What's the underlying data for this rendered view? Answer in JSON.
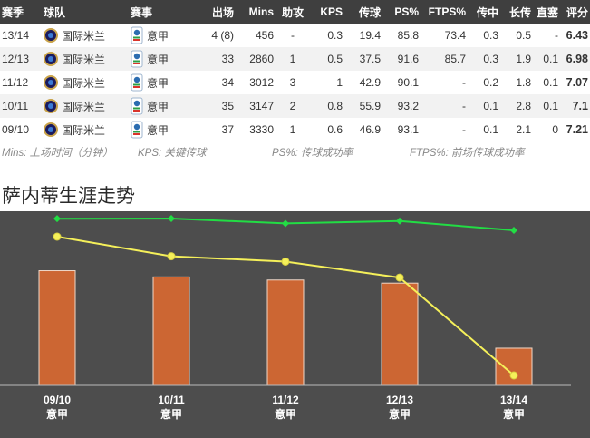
{
  "table": {
    "headers": {
      "season": "赛季",
      "team": "球队",
      "competition": "赛事",
      "apps": "出场",
      "mins": "Mins",
      "assists": "助攻",
      "kps": "KPS",
      "passes": "传球",
      "ps_pct": "PS%",
      "ftps_pct": "FTPS%",
      "through": "传中",
      "long": "长传",
      "shots": "直塞",
      "rating": "评分"
    },
    "rows": [
      {
        "season": "13/14",
        "team": "国际米兰",
        "competition": "意甲",
        "apps": "4 (8)",
        "mins": "456",
        "assists": "-",
        "kps": "0.3",
        "passes": "19.4",
        "ps_pct": "85.8",
        "ftps_pct": "73.4",
        "through": "0.3",
        "long": "0.5",
        "shots": "-",
        "rating": "6.43"
      },
      {
        "season": "12/13",
        "team": "国际米兰",
        "competition": "意甲",
        "apps": "33",
        "mins": "2860",
        "assists": "1",
        "kps": "0.5",
        "passes": "37.5",
        "ps_pct": "91.6",
        "ftps_pct": "85.7",
        "through": "0.3",
        "long": "1.9",
        "shots": "0.1",
        "rating": "6.98"
      },
      {
        "season": "11/12",
        "team": "国际米兰",
        "competition": "意甲",
        "apps": "34",
        "mins": "3012",
        "assists": "3",
        "kps": "1",
        "passes": "42.9",
        "ps_pct": "90.1",
        "ftps_pct": "-",
        "through": "0.2",
        "long": "1.8",
        "shots": "0.1",
        "rating": "7.07"
      },
      {
        "season": "10/11",
        "team": "国际米兰",
        "competition": "意甲",
        "apps": "35",
        "mins": "3147",
        "assists": "2",
        "kps": "0.8",
        "passes": "55.9",
        "ps_pct": "93.2",
        "ftps_pct": "-",
        "through": "0.1",
        "long": "2.8",
        "shots": "0.1",
        "rating": "7.1"
      },
      {
        "season": "09/10",
        "team": "国际米兰",
        "competition": "意甲",
        "apps": "37",
        "mins": "3330",
        "assists": "1",
        "kps": "0.6",
        "passes": "46.9",
        "ps_pct": "93.1",
        "ftps_pct": "-",
        "through": "0.1",
        "long": "2.1",
        "shots": "0",
        "rating": "7.21"
      }
    ]
  },
  "legend": {
    "mins": "Mins: 上场时间（分钟）",
    "kps": "KPS: 关键传球",
    "ps": "PS%: 传球成功率",
    "ftps": "FTPS%: 前场传球成功率"
  },
  "trend": {
    "title": "萨内蒂生涯走势"
  },
  "chart_data": {
    "type": "bar",
    "categories": [
      "09/10",
      "10/11",
      "11/12",
      "12/13",
      "13/14"
    ],
    "category_sublabels": [
      "意甲",
      "意甲",
      "意甲",
      "意甲",
      "意甲"
    ],
    "series": [
      {
        "kind": "bar",
        "values": [
          37,
          35,
          34,
          33,
          12
        ],
        "color": "#cc6633"
      },
      {
        "kind": "line",
        "values": [
          7.21,
          7.1,
          7.07,
          6.98,
          6.43
        ],
        "color": "#f5f05a"
      },
      {
        "kind": "line",
        "values": [
          93.1,
          93.2,
          90.1,
          91.6,
          85.8
        ],
        "color": "#22dd44"
      }
    ],
    "background": "#4d4d4d"
  }
}
